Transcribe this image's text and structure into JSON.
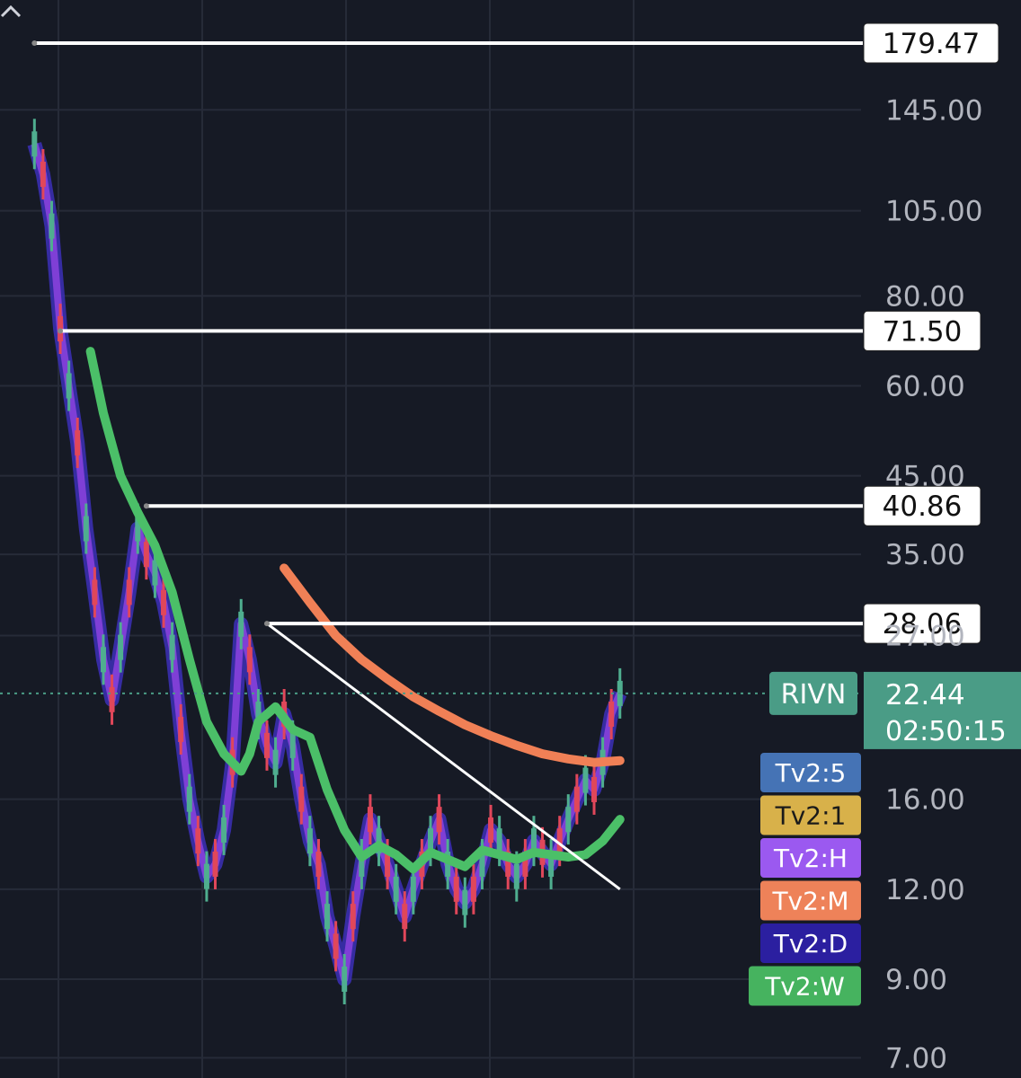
{
  "chart_data": {
    "type": "line",
    "symbol": "RIVN",
    "price_scale": "log",
    "ylim": [
      7,
      190
    ],
    "y_ticks": [
      "145.00",
      "105.00",
      "80.00",
      "60.00",
      "45.00",
      "35.00",
      "27.00",
      "16.00",
      "12.00",
      "9.00",
      "7.00"
    ],
    "current_price": {
      "label": "RIVN",
      "price": "22.44",
      "countdown": "02:50:15",
      "color": "#4a9c86"
    },
    "horizontal_levels": [
      {
        "label": "179.47",
        "value": 179.47,
        "from_x": 0.04
      },
      {
        "label": "71.50",
        "value": 71.5,
        "from_x": 0.07
      },
      {
        "label": "40.86",
        "value": 40.86,
        "from_x": 0.17
      },
      {
        "label": "28.06",
        "value": 28.06,
        "from_x": 0.31
      }
    ],
    "trendline": {
      "from": [
        0.31,
        28.06
      ],
      "to": [
        0.72,
        12.0
      ]
    },
    "price_series": {
      "name": "",
      "x": [
        0.04,
        0.05,
        0.06,
        0.07,
        0.08,
        0.09,
        0.1,
        0.11,
        0.12,
        0.13,
        0.14,
        0.15,
        0.16,
        0.17,
        0.18,
        0.19,
        0.2,
        0.21,
        0.22,
        0.23,
        0.24,
        0.25,
        0.26,
        0.27,
        0.28,
        0.29,
        0.3,
        0.31,
        0.32,
        0.33,
        0.34,
        0.35,
        0.36,
        0.37,
        0.38,
        0.39,
        0.4,
        0.41,
        0.42,
        0.43,
        0.44,
        0.45,
        0.46,
        0.47,
        0.48,
        0.49,
        0.5,
        0.51,
        0.52,
        0.53,
        0.54,
        0.55,
        0.56,
        0.57,
        0.58,
        0.59,
        0.6,
        0.61,
        0.62,
        0.63,
        0.64,
        0.65,
        0.66,
        0.67,
        0.68,
        0.69,
        0.7,
        0.71,
        0.72
      ],
      "y": [
        130,
        118,
        100,
        72,
        60,
        50,
        38,
        31,
        25,
        22,
        26,
        31,
        38,
        35,
        33,
        30,
        26,
        20,
        16,
        14,
        12.5,
        13,
        14.5,
        18,
        28,
        25,
        21,
        19,
        18,
        21,
        19,
        16,
        14,
        13,
        11,
        10,
        9,
        11,
        13,
        15,
        14,
        13,
        12,
        11,
        12,
        13,
        14,
        15,
        13,
        12,
        11.5,
        12,
        13,
        14.5,
        14,
        13,
        12.5,
        13,
        14,
        13.5,
        13,
        14,
        15,
        16,
        17,
        16.5,
        18,
        21,
        22.44
      ],
      "color": "#7f3fd6"
    },
    "series": [
      {
        "name": "",
        "color": "#4bbf68",
        "x": [
          0.105,
          0.12,
          0.14,
          0.16,
          0.18,
          0.2,
          0.22,
          0.24,
          0.26,
          0.28,
          0.29,
          0.3,
          0.32,
          0.34,
          0.36,
          0.38,
          0.4,
          0.42,
          0.44,
          0.46,
          0.48,
          0.5,
          0.52,
          0.54,
          0.56,
          0.58,
          0.6,
          0.62,
          0.64,
          0.66,
          0.68,
          0.7,
          0.72
        ],
        "y": [
          67,
          55,
          45,
          40,
          36,
          31,
          25,
          20.5,
          18.5,
          17.5,
          18.5,
          20.5,
          21.5,
          20,
          19.5,
          16.5,
          14.5,
          13.3,
          13.8,
          13.4,
          12.8,
          13.5,
          13.2,
          12.9,
          13.6,
          13.4,
          13.2,
          13.5,
          13.4,
          13.3,
          13.4,
          14.0,
          15.0
        ]
      },
      {
        "name": "",
        "color": "#f08056",
        "x": [
          0.33,
          0.36,
          0.39,
          0.42,
          0.45,
          0.48,
          0.51,
          0.54,
          0.57,
          0.6,
          0.63,
          0.66,
          0.69,
          0.72
        ],
        "y": [
          33.5,
          30,
          27,
          25,
          23.5,
          22.2,
          21.2,
          20.3,
          19.6,
          19.0,
          18.5,
          18.2,
          18.0,
          18.1
        ]
      }
    ],
    "legend": [
      {
        "label": "Tv2:5",
        "bg": "#4573b5",
        "fg": "#ffffff"
      },
      {
        "label": "Tv2:1",
        "bg": "#d8b14a",
        "fg": "#1a1a1a"
      },
      {
        "label": "Tv2:H",
        "bg": "#9b59f0",
        "fg": "#ffffff"
      },
      {
        "label": "Tv2:M",
        "bg": "#ee8259",
        "fg": "#ffffff"
      },
      {
        "label": "Tv2:D",
        "bg": "#2b1fa0",
        "fg": "#ffffff"
      },
      {
        "label": "Tv2:W",
        "bg": "#46b35f",
        "fg": "#ffffff"
      }
    ],
    "colors": {
      "background": "#161a25",
      "grid": "#262b38",
      "hline": "#ffffff"
    }
  }
}
